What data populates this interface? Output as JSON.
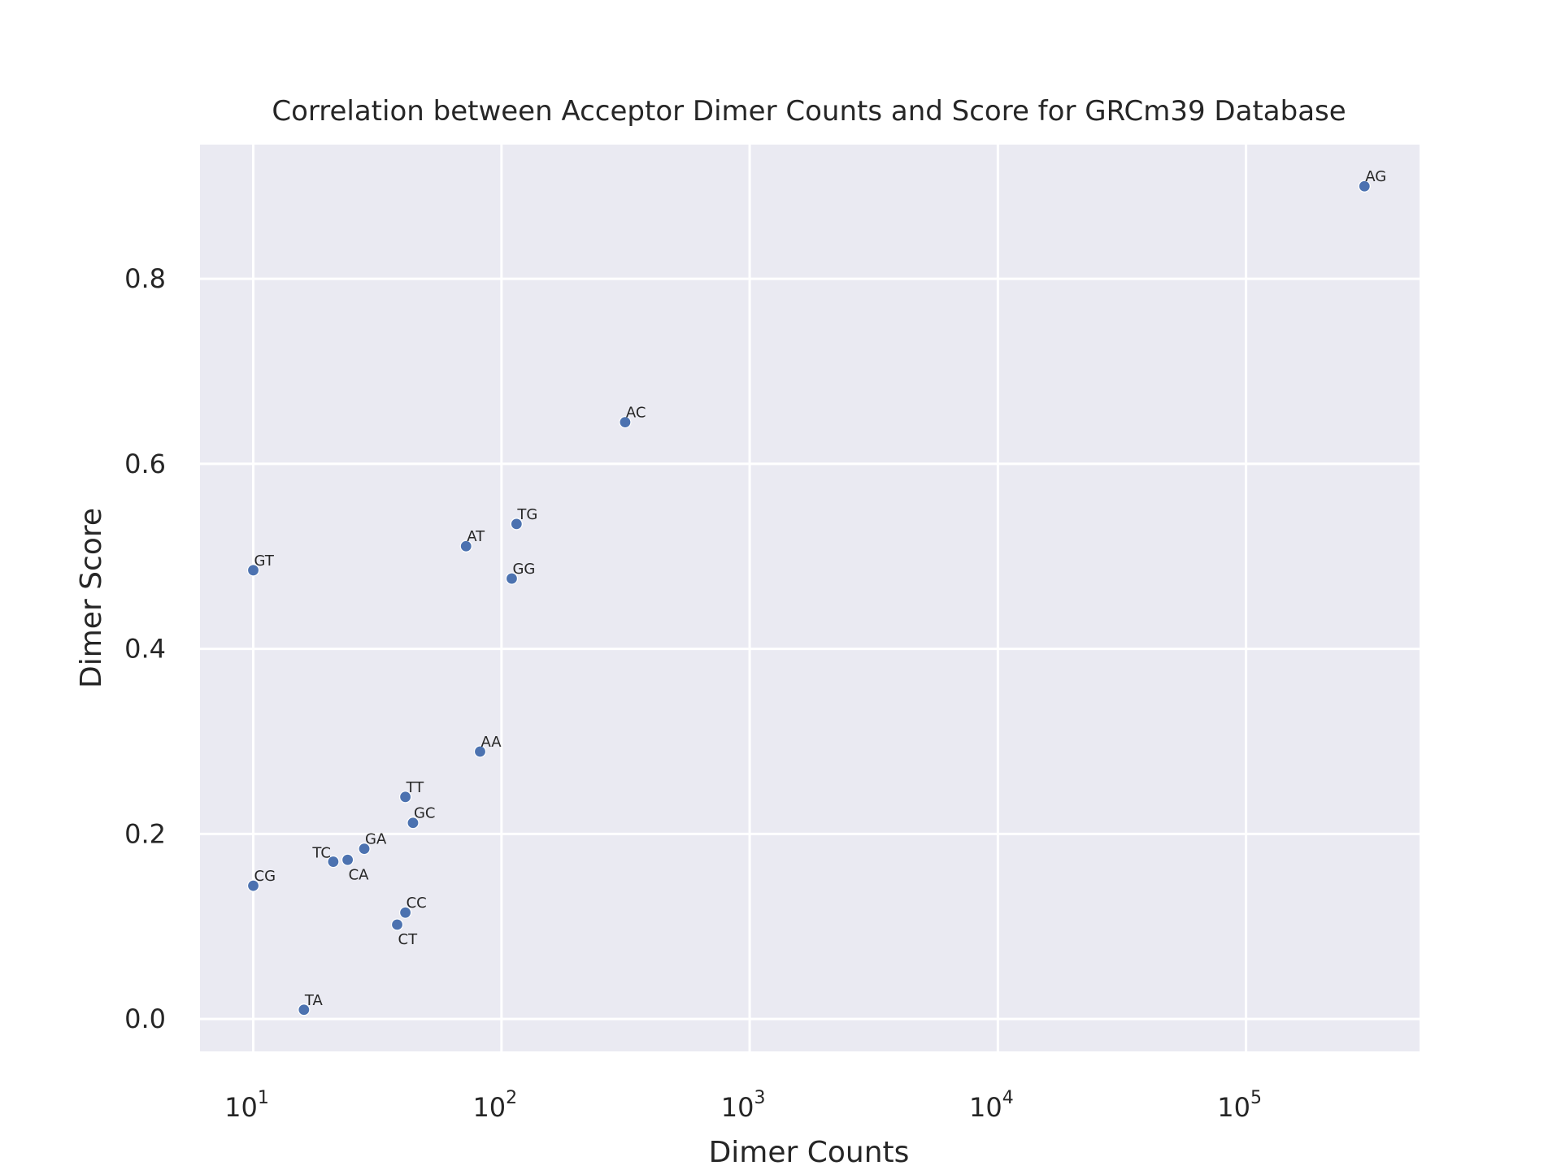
{
  "chart_data": {
    "type": "scatter",
    "title": "Correlation between Acceptor Dimer Counts and Score for GRCm39 Database",
    "xlabel": "Dimer Counts",
    "ylabel": "Dimer Score",
    "x_scale": "log",
    "xlim": [
      6.1,
      500000
    ],
    "ylim": [
      -0.035,
      0.945
    ],
    "x_ticks": [
      {
        "value": 10,
        "base": "10",
        "exp": "1"
      },
      {
        "value": 100,
        "base": "10",
        "exp": "2"
      },
      {
        "value": 1000,
        "base": "10",
        "exp": "3"
      },
      {
        "value": 10000,
        "base": "10",
        "exp": "4"
      },
      {
        "value": 100000,
        "base": "10",
        "exp": "5"
      }
    ],
    "y_ticks": [
      {
        "value": 0.0,
        "label": "0.0"
      },
      {
        "value": 0.2,
        "label": "0.2"
      },
      {
        "value": 0.4,
        "label": "0.4"
      },
      {
        "value": 0.6,
        "label": "0.6"
      },
      {
        "value": 0.8,
        "label": "0.8"
      }
    ],
    "grid": true,
    "background": "#eaeaf2",
    "marker_color": "#4c72b0",
    "points": [
      {
        "label": "AG",
        "x": 300000,
        "y": 0.9
      },
      {
        "label": "AC",
        "x": 315,
        "y": 0.645
      },
      {
        "label": "TG",
        "x": 115,
        "y": 0.535
      },
      {
        "label": "AT",
        "x": 72,
        "y": 0.511
      },
      {
        "label": "GT",
        "x": 10,
        "y": 0.485
      },
      {
        "label": "GG",
        "x": 110,
        "y": 0.476
      },
      {
        "label": "AA",
        "x": 82,
        "y": 0.289
      },
      {
        "label": "TT",
        "x": 41,
        "y": 0.24
      },
      {
        "label": "GC",
        "x": 44,
        "y": 0.212
      },
      {
        "label": "GA",
        "x": 28,
        "y": 0.184
      },
      {
        "label": "CA",
        "x": 24,
        "y": 0.172
      },
      {
        "label": "TC",
        "x": 21,
        "y": 0.17
      },
      {
        "label": "CG",
        "x": 10,
        "y": 0.144
      },
      {
        "label": "CC",
        "x": 41,
        "y": 0.115
      },
      {
        "label": "CT",
        "x": 38,
        "y": 0.102
      },
      {
        "label": "TA",
        "x": 16,
        "y": 0.01
      }
    ]
  }
}
